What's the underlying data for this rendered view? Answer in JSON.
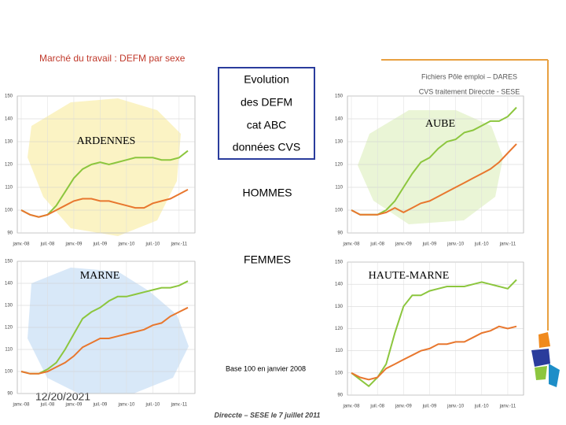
{
  "slide": {
    "title": "Marché du travail : DEFM par sexe",
    "box": [
      "Evolution",
      "des DEFM",
      "cat ABC",
      "données CVS"
    ],
    "source": [
      "Fichiers Pôle emploi – DARES",
      "CVS traitement Direccte - SESE"
    ],
    "note": "Base 100 en janvier 2008",
    "date": "12/20/2021",
    "footer": "Direccte – SESE le 7 juillet 2011"
  },
  "chart_data": [
    {
      "type": "line",
      "title": "ARDENNES",
      "categories": [
        "janv.-08",
        null,
        null,
        "juil.-08",
        null,
        null,
        "janv.-09",
        null,
        null,
        "juil.-09",
        null,
        null,
        "janv.-10",
        null,
        null,
        "juil.-10",
        null,
        null,
        "janv.-11",
        null
      ],
      "series": [
        {
          "name": "HOMMES",
          "color": "#8cc63e",
          "values": [
            100,
            98,
            97,
            98,
            102,
            108,
            114,
            118,
            120,
            121,
            120,
            121,
            122,
            123,
            123,
            123,
            122,
            122,
            123,
            126
          ]
        },
        {
          "name": "FEMMES",
          "color": "#e8772e",
          "values": [
            100,
            98,
            97,
            98,
            100,
            102,
            104,
            105,
            105,
            104,
            104,
            103,
            102,
            101,
            101,
            103,
            104,
            105,
            107,
            109
          ]
        }
      ],
      "ylim": [
        90,
        150
      ],
      "yticks": [
        90,
        100,
        110,
        120,
        130,
        140,
        150
      ],
      "grid": true
    },
    {
      "type": "line",
      "title": "AUBE",
      "categories": [
        "janv.-08",
        null,
        null,
        "juil.-08",
        null,
        null,
        "janv.-09",
        null,
        null,
        "juil.-09",
        null,
        null,
        "janv.-10",
        null,
        null,
        "juil.-10",
        null,
        null,
        "janv.-11",
        null
      ],
      "series": [
        {
          "color": "#8cc63e",
          "values": [
            100,
            98,
            98,
            98,
            100,
            104,
            110,
            116,
            121,
            123,
            127,
            130,
            131,
            134,
            135,
            137,
            139,
            139,
            141,
            145
          ]
        },
        {
          "color": "#e8772e",
          "values": [
            100,
            98,
            98,
            98,
            99,
            101,
            99,
            101,
            103,
            104,
            106,
            108,
            110,
            112,
            114,
            116,
            118,
            121,
            125,
            129
          ]
        }
      ],
      "ylim": [
        90,
        150
      ],
      "yticks": [
        90,
        100,
        110,
        120,
        130,
        140,
        150
      ],
      "grid": true
    },
    {
      "type": "line",
      "title": "MARNE",
      "categories": [
        "janv.-08",
        null,
        null,
        "juil.-08",
        null,
        null,
        "janv.-09",
        null,
        null,
        "juil.-09",
        null,
        null,
        "janv.-10",
        null,
        null,
        "juil.-10",
        null,
        null,
        "janv.-11",
        null
      ],
      "series": [
        {
          "color": "#8cc63e",
          "values": [
            100,
            99,
            99,
            101,
            104,
            110,
            117,
            124,
            127,
            129,
            132,
            134,
            134,
            135,
            136,
            137,
            138,
            138,
            139,
            141
          ]
        },
        {
          "color": "#e8772e",
          "values": [
            100,
            99,
            99,
            100,
            102,
            104,
            107,
            111,
            113,
            115,
            115,
            116,
            117,
            118,
            119,
            121,
            122,
            125,
            127,
            129
          ]
        }
      ],
      "ylim": [
        90,
        150
      ],
      "yticks": [
        90,
        100,
        110,
        120,
        130,
        140,
        150
      ],
      "grid": true
    },
    {
      "type": "line",
      "title": "HAUTE-MARNE",
      "categories": [
        "janv.-08",
        null,
        null,
        "juil.-08",
        null,
        null,
        "janv.-09",
        null,
        null,
        "juil.-09",
        null,
        null,
        "janv.-10",
        null,
        null,
        "juil.-10",
        null,
        null,
        "janv.-11",
        null
      ],
      "series": [
        {
          "color": "#8cc63e",
          "values": [
            100,
            97,
            94,
            98,
            104,
            118,
            130,
            135,
            135,
            137,
            138,
            139,
            139,
            139,
            140,
            141,
            140,
            139,
            138,
            142
          ]
        },
        {
          "color": "#e8772e",
          "values": [
            100,
            98,
            97,
            98,
            102,
            104,
            106,
            108,
            110,
            111,
            113,
            113,
            114,
            114,
            116,
            118,
            119,
            121,
            120,
            121
          ]
        }
      ],
      "ylim": [
        90,
        150
      ],
      "yticks": [
        90,
        100,
        110,
        120,
        130,
        140,
        150
      ],
      "grid": true
    }
  ]
}
